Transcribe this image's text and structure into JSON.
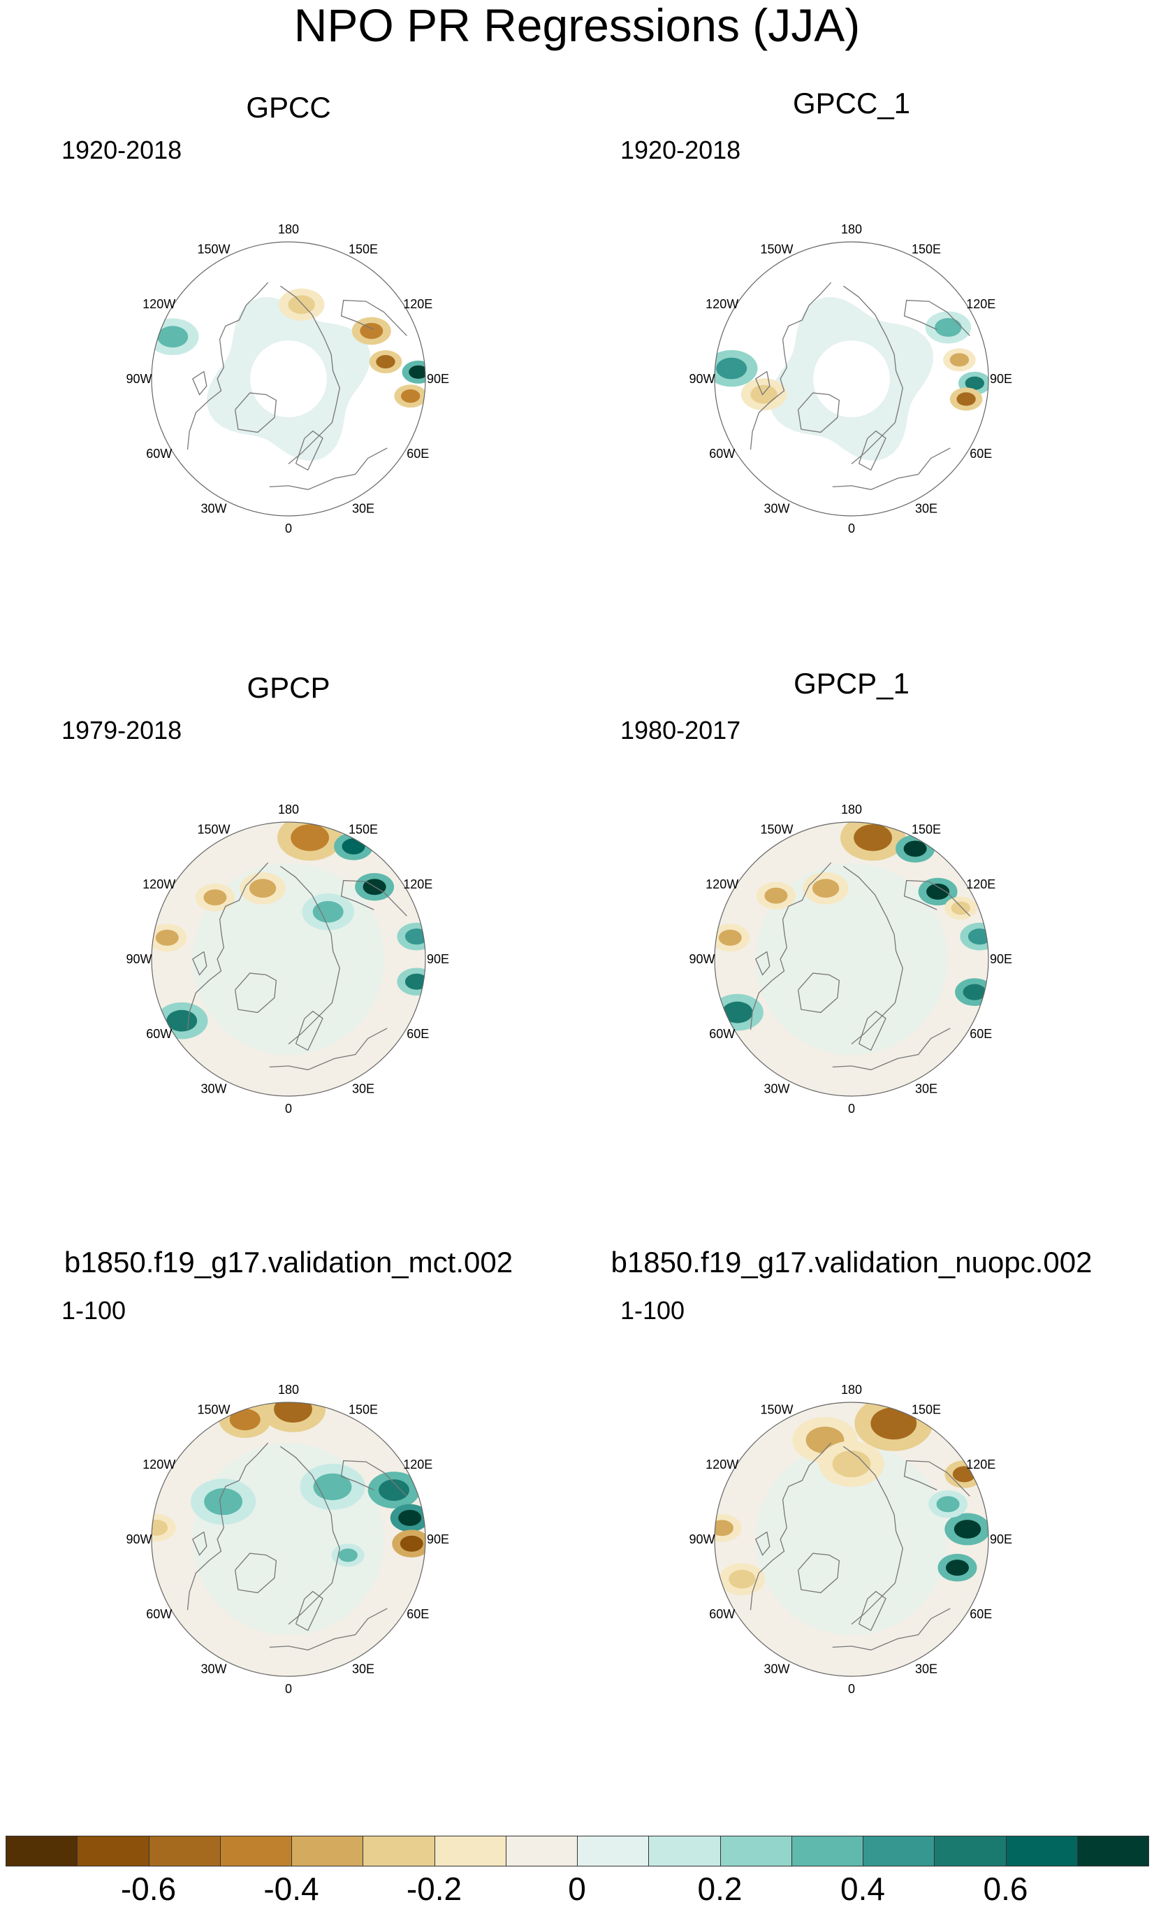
{
  "title": "NPO PR Regressions (JJA)",
  "panels": [
    {
      "title": "GPCC",
      "period": "1920-2018",
      "kind": "land",
      "anomalies": [
        {
          "lon": 120,
          "r": 0.7,
          "v": -0.45,
          "s": 0.06
        },
        {
          "lon": 100,
          "r": 0.72,
          "v": -0.6,
          "s": 0.05
        },
        {
          "lon": 93,
          "r": 0.95,
          "v": 0.7,
          "s": 0.05
        },
        {
          "lon": 82,
          "r": 0.9,
          "v": -0.5,
          "s": 0.05
        },
        {
          "lon": -110,
          "r": 0.9,
          "v": 0.3,
          "s": 0.08
        },
        {
          "lon": 170,
          "r": 0.55,
          "v": -0.3,
          "s": 0.07
        }
      ]
    },
    {
      "title": "GPCC_1",
      "period": "1920-2018",
      "kind": "land",
      "anomalies": [
        {
          "lon": 118,
          "r": 0.8,
          "v": 0.3,
          "s": 0.07
        },
        {
          "lon": 100,
          "r": 0.8,
          "v": -0.4,
          "s": 0.05
        },
        {
          "lon": 88,
          "r": 0.9,
          "v": 0.55,
          "s": 0.05
        },
        {
          "lon": 80,
          "r": 0.85,
          "v": -0.55,
          "s": 0.05
        },
        {
          "lon": -95,
          "r": 0.88,
          "v": 0.45,
          "s": 0.08
        },
        {
          "lon": -80,
          "r": 0.65,
          "v": -0.25,
          "s": 0.07
        }
      ]
    },
    {
      "title": "GPCP",
      "period": "1979-2018",
      "kind": "full",
      "anomalies": [
        {
          "lon": 170,
          "r": 0.9,
          "v": -0.5,
          "s": 0.1
        },
        {
          "lon": 150,
          "r": 0.95,
          "v": 0.65,
          "s": 0.06
        },
        {
          "lon": 130,
          "r": 0.82,
          "v": 0.7,
          "s": 0.06
        },
        {
          "lon": -160,
          "r": 0.55,
          "v": -0.35,
          "s": 0.07
        },
        {
          "lon": -100,
          "r": 0.9,
          "v": -0.35,
          "s": 0.06
        },
        {
          "lon": -60,
          "r": 0.9,
          "v": 0.5,
          "s": 0.08
        },
        {
          "lon": 80,
          "r": 0.95,
          "v": 0.55,
          "s": 0.06
        },
        {
          "lon": 100,
          "r": 0.95,
          "v": 0.4,
          "s": 0.06
        },
        {
          "lon": 140,
          "r": 0.45,
          "v": 0.3,
          "s": 0.08
        },
        {
          "lon": -130,
          "r": 0.7,
          "v": -0.4,
          "s": 0.06
        }
      ]
    },
    {
      "title": "GPCP_1",
      "period": "1980-2017",
      "kind": "full",
      "anomalies": [
        {
          "lon": 170,
          "r": 0.9,
          "v": -0.55,
          "s": 0.1
        },
        {
          "lon": 150,
          "r": 0.93,
          "v": 0.7,
          "s": 0.06
        },
        {
          "lon": 128,
          "r": 0.8,
          "v": 0.75,
          "s": 0.06
        },
        {
          "lon": -160,
          "r": 0.55,
          "v": -0.35,
          "s": 0.07
        },
        {
          "lon": -100,
          "r": 0.9,
          "v": -0.4,
          "s": 0.06
        },
        {
          "lon": -65,
          "r": 0.92,
          "v": 0.5,
          "s": 0.08
        },
        {
          "lon": 75,
          "r": 0.93,
          "v": 0.6,
          "s": 0.06
        },
        {
          "lon": 100,
          "r": 0.95,
          "v": 0.45,
          "s": 0.06
        },
        {
          "lon": -130,
          "r": 0.72,
          "v": -0.4,
          "s": 0.06
        },
        {
          "lon": 115,
          "r": 0.88,
          "v": -0.3,
          "s": 0.05
        }
      ]
    },
    {
      "title": "b1850.f19_g17.validation_mct.002",
      "period": "1-100",
      "kind": "full",
      "anomalies": [
        {
          "lon": 178,
          "r": 0.95,
          "v": -0.6,
          "s": 0.1
        },
        {
          "lon": -160,
          "r": 0.93,
          "v": -0.45,
          "s": 0.08
        },
        {
          "lon": 115,
          "r": 0.85,
          "v": 0.6,
          "s": 0.08
        },
        {
          "lon": 100,
          "r": 0.9,
          "v": 0.8,
          "s": 0.06
        },
        {
          "lon": 88,
          "r": 0.9,
          "v": -0.7,
          "s": 0.06
        },
        {
          "lon": 140,
          "r": 0.5,
          "v": 0.35,
          "s": 0.1
        },
        {
          "lon": -120,
          "r": 0.55,
          "v": 0.3,
          "s": 0.1
        },
        {
          "lon": 75,
          "r": 0.45,
          "v": 0.35,
          "s": 0.05
        },
        {
          "lon": -95,
          "r": 0.97,
          "v": -0.3,
          "s": 0.06
        }
      ]
    },
    {
      "title": "b1850.f19_g17.validation_nuopc.002",
      "period": "1-100",
      "kind": "full",
      "anomalies": [
        {
          "lon": 160,
          "r": 0.9,
          "v": -0.6,
          "s": 0.12
        },
        {
          "lon": -165,
          "r": 0.75,
          "v": -0.4,
          "s": 0.1
        },
        {
          "lon": 180,
          "r": 0.55,
          "v": -0.3,
          "s": 0.1
        },
        {
          "lon": 120,
          "r": 0.95,
          "v": -0.6,
          "s": 0.06
        },
        {
          "lon": 95,
          "r": 0.85,
          "v": 0.75,
          "s": 0.07
        },
        {
          "lon": 75,
          "r": 0.8,
          "v": 0.7,
          "s": 0.06
        },
        {
          "lon": 110,
          "r": 0.75,
          "v": 0.35,
          "s": 0.06
        },
        {
          "lon": -95,
          "r": 0.95,
          "v": -0.35,
          "s": 0.06
        },
        {
          "lon": -70,
          "r": 0.85,
          "v": -0.25,
          "s": 0.07
        }
      ]
    }
  ],
  "lon_labels": [
    "180",
    "150E",
    "120E",
    "90E",
    "60E",
    "30E",
    "0",
    "30W",
    "60W",
    "90W",
    "120W",
    "150W"
  ],
  "colorbar": {
    "colors": [
      "#543005",
      "#8c510a",
      "#a66a1e",
      "#bf812d",
      "#d4aa5e",
      "#e8cf8f",
      "#f6e8c3",
      "#f3efe6",
      "#e3f1ef",
      "#c7eae5",
      "#93d5ca",
      "#5fb9ad",
      "#35978f",
      "#1a7a70",
      "#01665e",
      "#003c30"
    ],
    "ticks": [
      "-0.6",
      "-0.4",
      "-0.2",
      "0",
      "0.2",
      "0.4",
      "0.6"
    ]
  }
}
